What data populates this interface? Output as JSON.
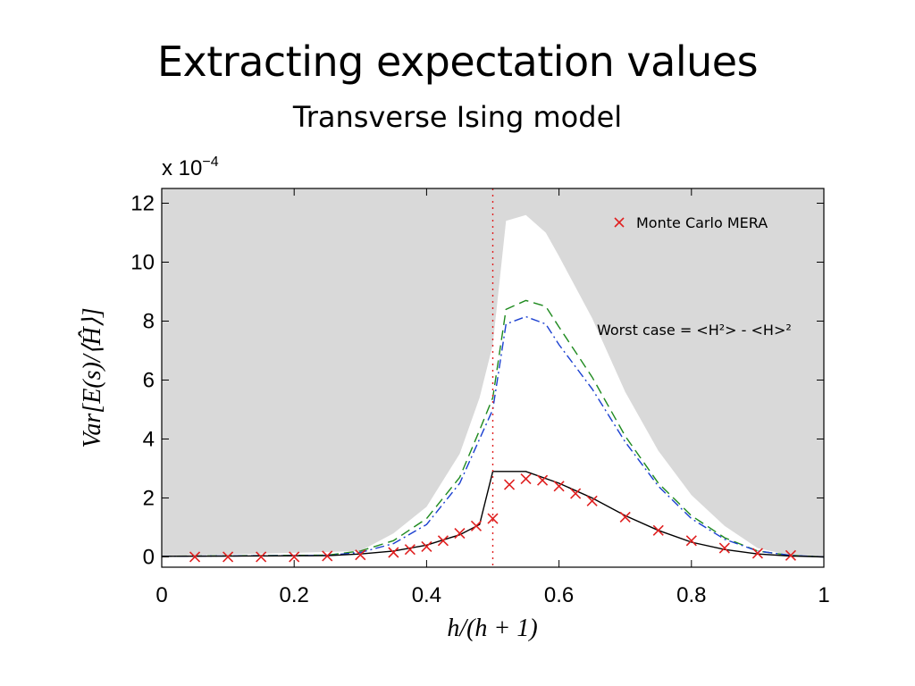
{
  "slide": {
    "title": "Extracting expectation values",
    "subtitle": "Transverse Ising model"
  },
  "chart_data": {
    "type": "line",
    "multiplier_label": "x 10",
    "multiplier_exponent": "−4",
    "xlabel": "h/(h + 1)",
    "ylabel": "Var[E(s)/⟨Ĥ⟩]",
    "xlim": [
      0,
      1
    ],
    "ylim": [
      -0.35,
      12.5
    ],
    "x_ticks": [
      0,
      0.2,
      0.4,
      0.6,
      0.8,
      1
    ],
    "x_tick_labels": [
      "0",
      "0.2",
      "0.4",
      "0.6",
      "0.8",
      "1"
    ],
    "y_ticks": [
      0,
      2,
      4,
      6,
      8,
      10,
      12
    ],
    "y_tick_labels": [
      "0",
      "2",
      "4",
      "6",
      "8",
      "10",
      "12"
    ],
    "background_color": "#d9d9d9",
    "annotation": "Worst case = <H²> - <H>²",
    "critical_line_x": 0.5,
    "legend": {
      "position": "top-right",
      "entries": [
        "Monte Carlo MERA"
      ]
    },
    "series": [
      {
        "name": "Worst case",
        "style": "white-band",
        "color": "#ffffff",
        "x": [
          0,
          0.3,
          0.35,
          0.4,
          0.45,
          0.48,
          0.5,
          0.52,
          0.55,
          0.58,
          0.6,
          0.65,
          0.7,
          0.75,
          0.8,
          0.85,
          0.9,
          0.95,
          1.0
        ],
        "values": [
          0.02,
          0.2,
          0.8,
          1.7,
          3.5,
          5.4,
          7.2,
          11.4,
          11.6,
          11.0,
          10.2,
          8.1,
          5.6,
          3.6,
          2.1,
          1.05,
          0.3,
          0.05,
          0.0
        ]
      },
      {
        "name": "",
        "style": "dashed",
        "color": "#1e8a1e",
        "x": [
          0,
          0.25,
          0.3,
          0.35,
          0.4,
          0.45,
          0.48,
          0.5,
          0.52,
          0.55,
          0.58,
          0.6,
          0.65,
          0.7,
          0.75,
          0.8,
          0.85,
          0.9,
          0.95,
          1.0
        ],
        "values": [
          0.02,
          0.06,
          0.2,
          0.55,
          1.3,
          2.7,
          4.3,
          5.4,
          8.4,
          8.7,
          8.5,
          7.8,
          6.1,
          4.1,
          2.5,
          1.4,
          0.65,
          0.2,
          0.05,
          0.0
        ]
      },
      {
        "name": "",
        "style": "dash-dot",
        "color": "#1a3fd0",
        "x": [
          0,
          0.25,
          0.3,
          0.35,
          0.4,
          0.45,
          0.48,
          0.5,
          0.52,
          0.55,
          0.58,
          0.6,
          0.65,
          0.7,
          0.75,
          0.8,
          0.85,
          0.9,
          0.95,
          1.0
        ],
        "values": [
          0.02,
          0.05,
          0.15,
          0.45,
          1.1,
          2.5,
          4.0,
          5.0,
          7.9,
          8.15,
          7.9,
          7.2,
          5.7,
          3.9,
          2.4,
          1.3,
          0.6,
          0.2,
          0.05,
          0.0
        ]
      },
      {
        "name": "",
        "style": "solid",
        "color": "#000000",
        "x": [
          0,
          0.25,
          0.3,
          0.35,
          0.4,
          0.45,
          0.48,
          0.5,
          0.55,
          0.6,
          0.65,
          0.7,
          0.75,
          0.8,
          0.85,
          0.9,
          0.95,
          1.0
        ],
        "values": [
          0.02,
          0.04,
          0.1,
          0.2,
          0.4,
          0.75,
          1.1,
          2.9,
          2.9,
          2.5,
          2.0,
          1.4,
          0.9,
          0.5,
          0.25,
          0.1,
          0.03,
          0.0
        ]
      },
      {
        "name": "Monte Carlo MERA",
        "style": "markers-x",
        "color": "#e02020",
        "x": [
          0.05,
          0.1,
          0.15,
          0.2,
          0.25,
          0.3,
          0.35,
          0.375,
          0.4,
          0.425,
          0.45,
          0.475,
          0.5,
          0.525,
          0.55,
          0.575,
          0.6,
          0.625,
          0.65,
          0.7,
          0.75,
          0.8,
          0.85,
          0.9,
          0.95
        ],
        "values": [
          0.0,
          0.0,
          0.0,
          0.0,
          0.03,
          0.07,
          0.15,
          0.25,
          0.35,
          0.55,
          0.8,
          1.05,
          1.3,
          2.45,
          2.65,
          2.6,
          2.4,
          2.15,
          1.9,
          1.35,
          0.9,
          0.55,
          0.3,
          0.12,
          0.05
        ]
      }
    ]
  }
}
